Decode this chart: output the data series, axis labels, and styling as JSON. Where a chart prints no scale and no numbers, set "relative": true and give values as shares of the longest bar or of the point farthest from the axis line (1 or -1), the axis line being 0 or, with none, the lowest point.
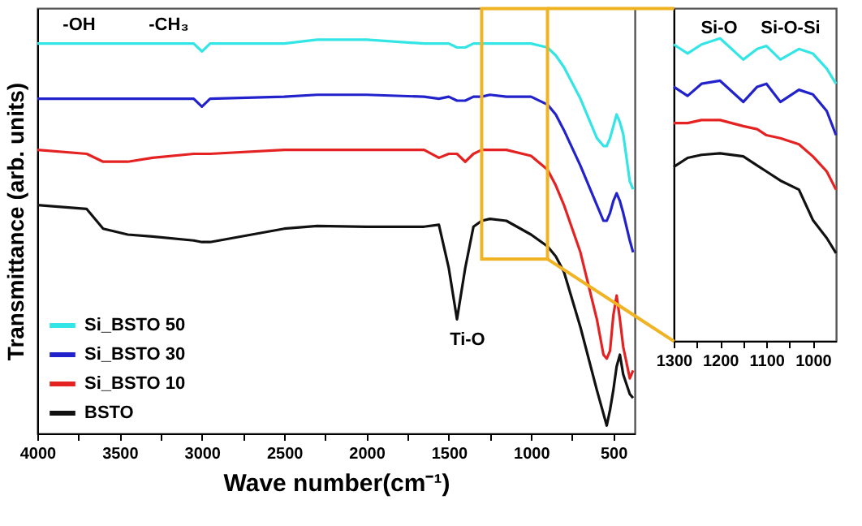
{
  "chart_data": [
    {
      "type": "line",
      "relative": true,
      "xlabel": "Wave number(cm⁻¹)",
      "ylabel": "Transmittance (arb. units)",
      "legend": "bottom left",
      "xlim": [
        4000,
        370
      ],
      "xticks": [
        4000,
        {
          "value": 3750,
          "label": null
        },
        3500,
        {
          "value": 3250,
          "label": null
        },
        3000,
        {
          "value": 2750,
          "label": null
        },
        2500,
        {
          "value": 2250,
          "label": null
        },
        2000,
        {
          "value": 1750,
          "label": null
        },
        1500,
        {
          "value": 1250,
          "label": null
        },
        1000,
        {
          "value": 750,
          "label": null
        },
        500
      ],
      "x": [
        4000,
        3700,
        3600,
        3450,
        3300,
        3050,
        3000,
        2950,
        2500,
        2300,
        2000,
        1650,
        1560,
        1500,
        1450,
        1400,
        1350,
        1300,
        1250,
        1150,
        1000,
        900,
        850,
        800,
        700,
        600,
        560,
        540,
        520,
        500,
        480,
        460,
        440,
        400,
        380
      ],
      "series": [
        {
          "name": "Si_BSTO 50",
          "color": "#33e5e5",
          "values": [
            0.99,
            0.99,
            0.99,
            0.99,
            0.99,
            0.99,
            0.97,
            0.99,
            0.99,
            1.0,
            1.0,
            0.99,
            0.99,
            0.99,
            0.98,
            0.98,
            0.99,
            0.99,
            0.99,
            0.99,
            0.99,
            0.98,
            0.96,
            0.93,
            0.85,
            0.75,
            0.73,
            0.73,
            0.75,
            0.78,
            0.81,
            0.79,
            0.76,
            0.64,
            0.62
          ]
        },
        {
          "name": "Si_BSTO 30",
          "color": "#2222cc",
          "values": [
            0.85,
            0.85,
            0.85,
            0.85,
            0.85,
            0.85,
            0.83,
            0.85,
            0.855,
            0.86,
            0.86,
            0.855,
            0.85,
            0.855,
            0.845,
            0.845,
            0.855,
            0.855,
            0.86,
            0.855,
            0.855,
            0.835,
            0.81,
            0.77,
            0.68,
            0.58,
            0.54,
            0.54,
            0.56,
            0.59,
            0.61,
            0.59,
            0.56,
            0.49,
            0.46
          ]
        },
        {
          "name": "Si_BSTO 10",
          "color": "#e52222",
          "values": [
            0.72,
            0.71,
            0.69,
            0.69,
            0.7,
            0.71,
            0.71,
            0.71,
            0.72,
            0.72,
            0.72,
            0.72,
            0.7,
            0.71,
            0.71,
            0.69,
            0.71,
            0.72,
            0.72,
            0.72,
            0.705,
            0.67,
            0.63,
            0.58,
            0.46,
            0.29,
            0.2,
            0.19,
            0.21,
            0.3,
            0.35,
            0.29,
            0.22,
            0.14,
            0.16
          ]
        },
        {
          "name": "BSTO",
          "color": "#111111",
          "values": [
            0.58,
            0.57,
            0.52,
            0.505,
            0.5,
            0.49,
            0.486,
            0.486,
            0.52,
            0.527,
            0.525,
            0.525,
            0.53,
            0.42,
            0.29,
            0.42,
            0.525,
            0.54,
            0.545,
            0.54,
            0.505,
            0.475,
            0.45,
            0.41,
            0.27,
            0.11,
            0.05,
            0.02,
            0.06,
            0.11,
            0.17,
            0.2,
            0.15,
            0.1,
            0.09
          ]
        }
      ],
      "annotations": [
        "-OH",
        "-CH₃",
        "Ti-O"
      ]
    },
    {
      "type": "line",
      "relative": true,
      "xlim": [
        1300,
        950
      ],
      "xticks": [
        1300,
        {
          "value": 1250,
          "label": null
        },
        1200,
        {
          "value": 1150,
          "label": null
        },
        1100,
        {
          "value": 1050,
          "label": null
        },
        1000
      ],
      "x": [
        1300,
        1270,
        1240,
        1200,
        1150,
        1120,
        1100,
        1070,
        1030,
        1000,
        970,
        950
      ],
      "series": [
        {
          "color": "#33e5e5",
          "values": [
            0.98,
            0.95,
            0.98,
            1.0,
            0.93,
            0.965,
            0.975,
            0.93,
            0.965,
            0.95,
            0.9,
            0.85
          ]
        },
        {
          "color": "#2222cc",
          "values": [
            0.84,
            0.81,
            0.85,
            0.86,
            0.79,
            0.84,
            0.85,
            0.79,
            0.83,
            0.815,
            0.76,
            0.68
          ]
        },
        {
          "color": "#e52222",
          "values": [
            0.72,
            0.72,
            0.73,
            0.73,
            0.71,
            0.7,
            0.68,
            0.67,
            0.65,
            0.61,
            0.56,
            0.5
          ]
        },
        {
          "color": "#111111",
          "values": [
            0.575,
            0.605,
            0.615,
            0.62,
            0.61,
            0.58,
            0.56,
            0.53,
            0.5,
            0.4,
            0.34,
            0.29
          ]
        }
      ],
      "annotations": [
        "Si-O",
        "Si-O-Si"
      ]
    }
  ]
}
